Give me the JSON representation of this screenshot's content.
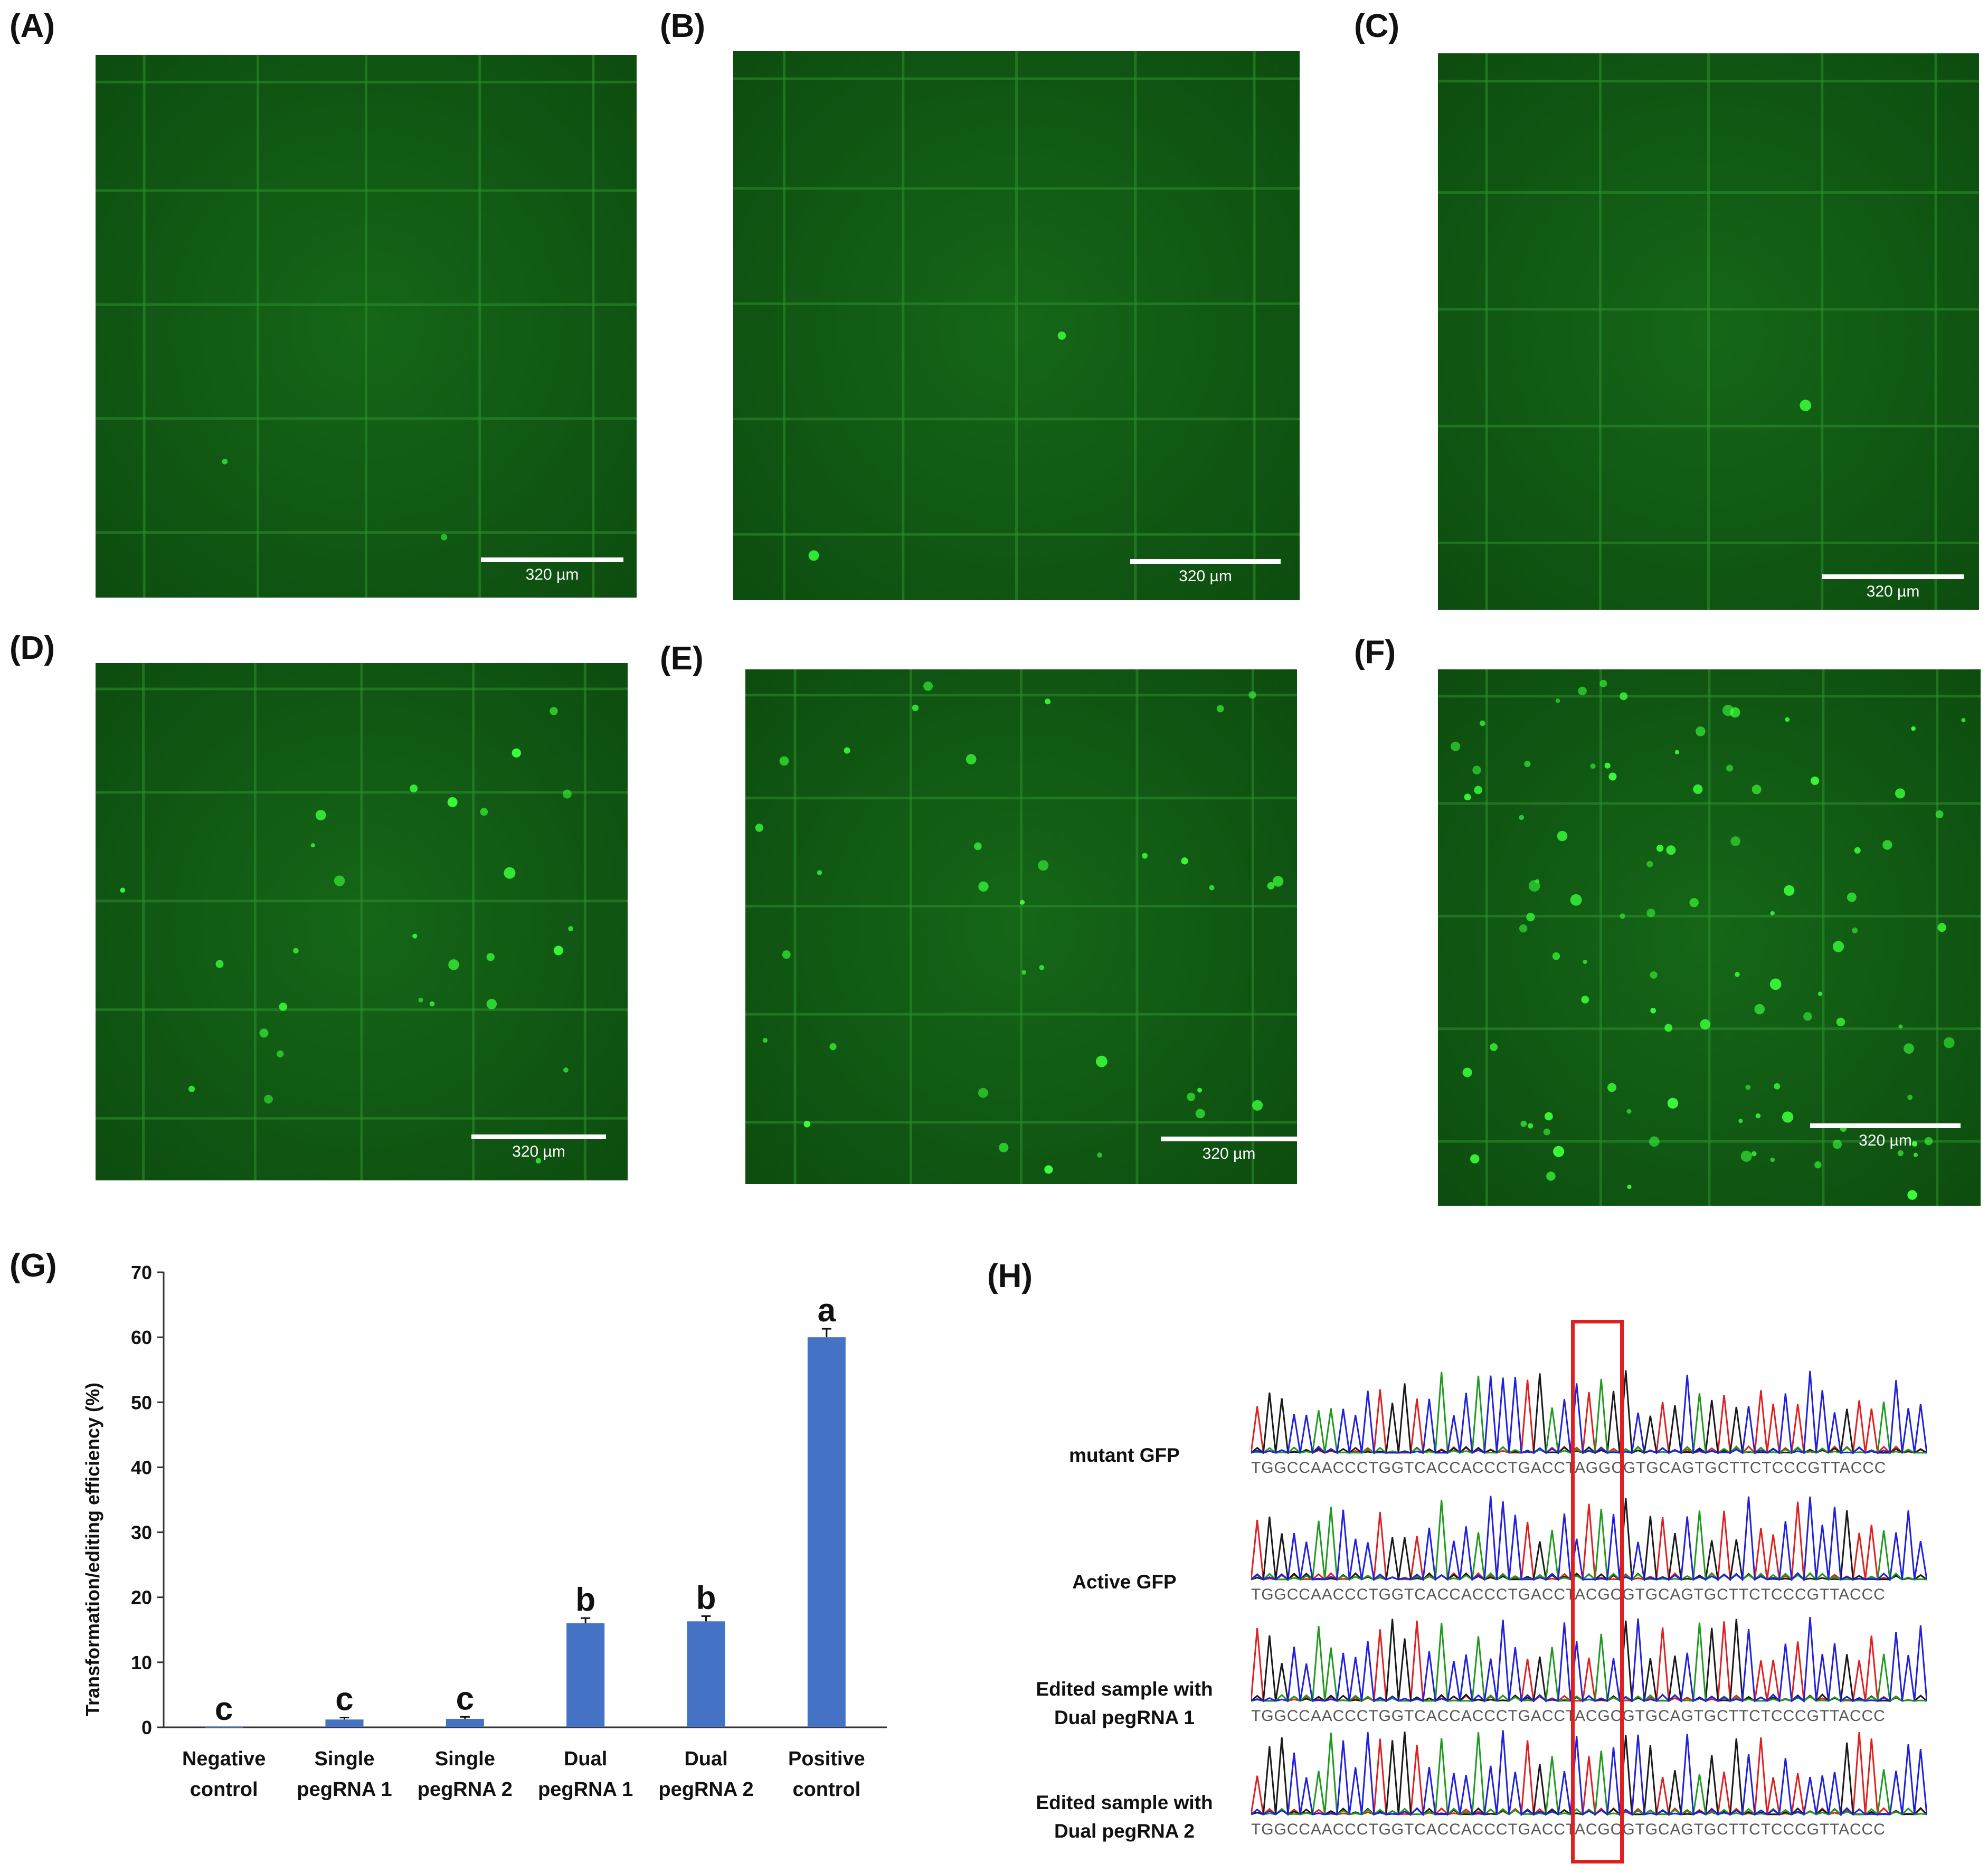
{
  "panels": {
    "A": {
      "label": "(A)",
      "scale": "320 µm"
    },
    "B": {
      "label": "(B)",
      "scale": "320 µm"
    },
    "C": {
      "label": "(C)",
      "scale": "320 µm"
    },
    "D": {
      "label": "(D)",
      "scale": "320 µm"
    },
    "E": {
      "label": "(E)",
      "scale": "320 µm"
    },
    "F": {
      "label": "(F)",
      "scale": "320 µm"
    },
    "G": {
      "label": "(G)"
    },
    "H": {
      "label": "(H)"
    }
  },
  "colors": {
    "bar": "#4472c4",
    "box": "#e02020",
    "micro": "#0f5a12",
    "cell": "#39ff39"
  },
  "chart_data": {
    "type": "bar",
    "ylabel": "Transformation/editing efficiency (%)",
    "ylim": [
      0,
      70
    ],
    "yticks": [
      "0",
      "10",
      "20",
      "30",
      "40",
      "50",
      "60",
      "70"
    ],
    "categories": [
      [
        "Negative",
        "control"
      ],
      [
        "Single",
        "pegRNA 1"
      ],
      [
        "Single",
        "pegRNA 2"
      ],
      [
        "Dual",
        "pegRNA 1"
      ],
      [
        "Dual",
        "pegRNA 2"
      ],
      [
        "Positive",
        "control"
      ]
    ],
    "values": [
      0,
      1.2,
      1.3,
      16,
      16.3,
      60
    ],
    "errors": [
      0,
      0.3,
      0.3,
      0.8,
      0.8,
      1.3
    ],
    "letters": [
      "c",
      "c",
      "c",
      "b",
      "b",
      "a"
    ]
  },
  "chromatograms": [
    {
      "label": [
        "mutant GFP"
      ],
      "sequence": "TGGCCAACCCTGGTCACCACCCTGACCTAGGCGTGCAGTGCTTCTCCCGTTACCC"
    },
    {
      "label": [
        "Active GFP"
      ],
      "sequence": "TGGCCAACCCTGGTCACCACCCTGACCTACGCGTGCAGTGCTTCTCCCGTTACCC"
    },
    {
      "label": [
        "Edited sample with",
        "Dual pegRNA 1"
      ],
      "sequence": "TGGCCAACCCTGGTCACCACCCTGACCTACGCGTGCAGTGCTTCTCCCGTTACCC"
    },
    {
      "label": [
        "Edited sample with",
        "Dual pegRNA 2"
      ],
      "sequence": "TGGCCAACCCTGGTCACCACCCTGACCTACGCGTGCAGTGCTTCTCCCGTTACCC"
    }
  ]
}
